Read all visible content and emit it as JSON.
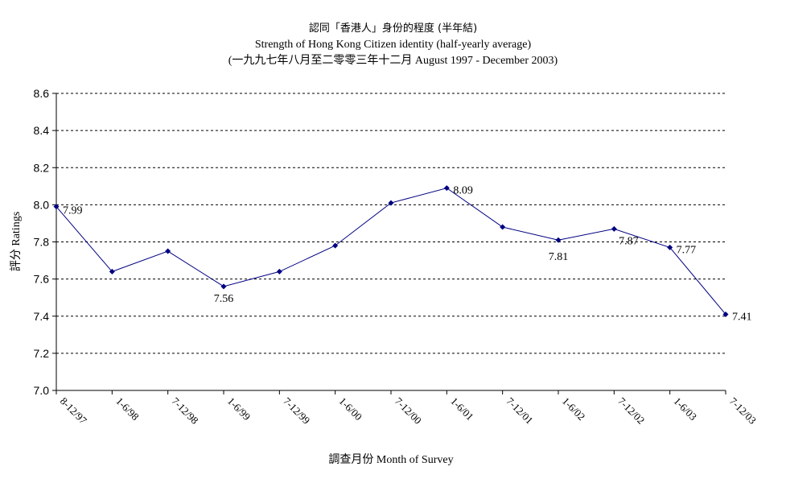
{
  "chart_data": {
    "type": "line",
    "title": "認同「香港人」身份的程度 (半年結)",
    "subtitle": "Strength of Hong Kong Citizen identity (half-yearly average)",
    "period": "(一九九七年八月至二零零三年十二月 August 1997 - December 2003)",
    "xlabel": "調查月份 Month of Survey",
    "ylabel": "評分 Ratings",
    "ylim": [
      7.0,
      8.6
    ],
    "yticks": [
      "7.0",
      "7.2",
      "7.4",
      "7.6",
      "7.8",
      "8.0",
      "8.2",
      "8.4",
      "8.6"
    ],
    "grid": true,
    "categories": [
      "8-12/97",
      "1-6/98",
      "7-12/98",
      "1-6/99",
      "7-12/99",
      "1-6/00",
      "7-12/00",
      "1-6/01",
      "7-12/01",
      "1-6/02",
      "7-12/02",
      "1-6/03",
      "7-12/03"
    ],
    "series": [
      {
        "values": [
          7.99,
          7.64,
          7.75,
          7.56,
          7.64,
          7.78,
          8.01,
          8.09,
          7.88,
          7.81,
          7.87,
          7.77,
          7.41
        ]
      }
    ],
    "data_labels": [
      {
        "index": 0,
        "text": "7.99"
      },
      {
        "index": 3,
        "text": "7.56"
      },
      {
        "index": 7,
        "text": "8.09"
      },
      {
        "index": 9,
        "text": "7.81"
      },
      {
        "index": 10,
        "text": "7.87"
      },
      {
        "index": 11,
        "text": "7.77"
      },
      {
        "index": 12,
        "text": "7.41"
      }
    ],
    "colors": {
      "line": "#000080",
      "marker": "#000080",
      "grid": "#000000",
      "axis": "#000000"
    }
  }
}
